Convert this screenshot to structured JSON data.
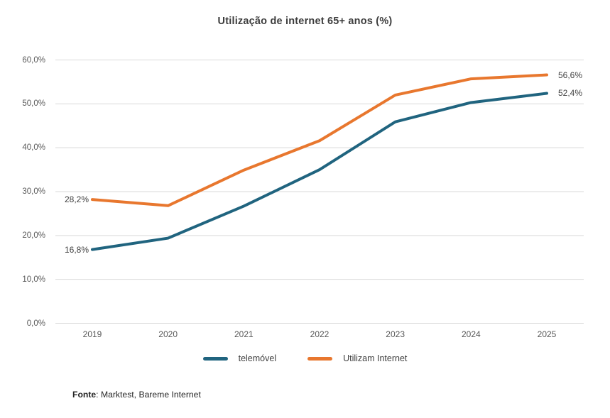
{
  "title": "Utilização de internet 65+ anos (%)",
  "source": {
    "prefix": "Fonte",
    "text": ": Marktest, Bareme Internet"
  },
  "chart_data": {
    "type": "line",
    "title": "Utilização de internet 65+ anos (%)",
    "categories": [
      "2019",
      "2020",
      "2021",
      "2022",
      "2023",
      "2024",
      "2025"
    ],
    "series": [
      {
        "name": "telemóvel",
        "color": "#20647F",
        "values": [
          16.8,
          19.4,
          26.7,
          35.0,
          45.9,
          50.3,
          52.4
        ],
        "first_point_label": "16,8%",
        "last_point_label": "52,4%"
      },
      {
        "name": "Utilizam Internet",
        "color": "#E8772E",
        "values": [
          28.2,
          26.8,
          34.9,
          41.6,
          52.0,
          55.7,
          56.6
        ],
        "first_point_label": "28,2%",
        "last_point_label": "56,6%"
      }
    ],
    "ylim": [
      0,
      60
    ],
    "yticks": [
      {
        "value": 0,
        "label": "0,0%"
      },
      {
        "value": 10,
        "label": "10,0%"
      },
      {
        "value": 20,
        "label": "20,0%"
      },
      {
        "value": 30,
        "label": "30,0%"
      },
      {
        "value": 40,
        "label": "40,0%"
      },
      {
        "value": 50,
        "label": "50,0%"
      },
      {
        "value": 60,
        "label": "60,0%"
      },
      {
        "note": "labels use comma decimal separator"
      }
    ],
    "grid": "horizontal",
    "legend_position": "bottom",
    "colors": {
      "gridline": "#D9D9D9",
      "axis_label": "#595959",
      "data_label": "#404040",
      "title": "#3D3D3D"
    }
  }
}
